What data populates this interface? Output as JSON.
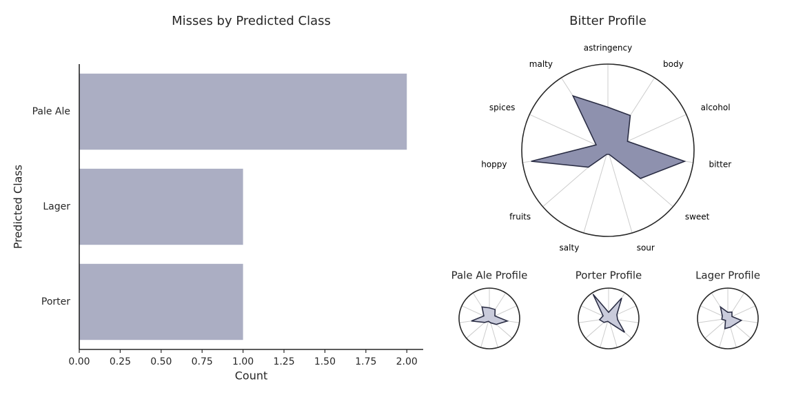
{
  "chart_data": [
    {
      "type": "bar",
      "orientation": "horizontal",
      "title": "Misses by Predicted Class",
      "xlabel": "Count",
      "ylabel": "Predicted Class",
      "categories": [
        "Pale Ale",
        "Lager",
        "Porter"
      ],
      "values": [
        2,
        1,
        1
      ],
      "xlim": [
        0,
        2.1
      ],
      "xticks": [
        0.0,
        0.25,
        0.5,
        0.75,
        1.0,
        1.25,
        1.5,
        1.75,
        2.0
      ],
      "xtick_labels": [
        "0.00",
        "0.25",
        "0.50",
        "0.75",
        "1.00",
        "1.25",
        "1.50",
        "1.75",
        "2.00"
      ],
      "grid": false,
      "color": "#abaec3"
    },
    {
      "type": "radar",
      "title": "Bitter Profile",
      "axes": [
        "astringency",
        "body",
        "alcohol",
        "bitter",
        "sweet",
        "sour",
        "salty",
        "fruits",
        "hoppy",
        "spices",
        "malty"
      ],
      "values": [
        0.5,
        0.48,
        0.25,
        0.9,
        0.5,
        0.05,
        0.05,
        0.3,
        0.9,
        0.15,
        0.75
      ],
      "fill": "#8e91ae",
      "stroke": "#2a2d44"
    },
    {
      "type": "radar",
      "title": "Pale Ale Profile",
      "axes": [
        "astringency",
        "body",
        "alcohol",
        "bitter",
        "sweet",
        "sour",
        "salty",
        "fruits",
        "hoppy",
        "spices",
        "malty"
      ],
      "values": [
        0.35,
        0.35,
        0.2,
        0.6,
        0.3,
        0.15,
        0.1,
        0.2,
        0.6,
        0.2,
        0.45
      ],
      "fill": "#c9cbdb",
      "stroke": "#2a2d44"
    },
    {
      "type": "radar",
      "title": "Porter Profile",
      "axes": [
        "astringency",
        "body",
        "alcohol",
        "bitter",
        "sweet",
        "sour",
        "salty",
        "fruits",
        "hoppy",
        "spices",
        "malty"
      ],
      "values": [
        0.2,
        0.8,
        0.3,
        0.3,
        0.7,
        0.15,
        0.1,
        0.2,
        0.3,
        0.2,
        0.95
      ],
      "fill": "#c9cbdb",
      "stroke": "#2a2d44"
    },
    {
      "type": "radar",
      "title": "Lager Profile",
      "axes": [
        "astringency",
        "body",
        "alcohol",
        "bitter",
        "sweet",
        "sour",
        "salty",
        "fruits",
        "hoppy",
        "spices",
        "malty"
      ],
      "values": [
        0.2,
        0.25,
        0.15,
        0.45,
        0.3,
        0.3,
        0.35,
        0.1,
        0.2,
        0.2,
        0.45
      ],
      "fill": "#c9cbdb",
      "stroke": "#2a2d44"
    }
  ]
}
